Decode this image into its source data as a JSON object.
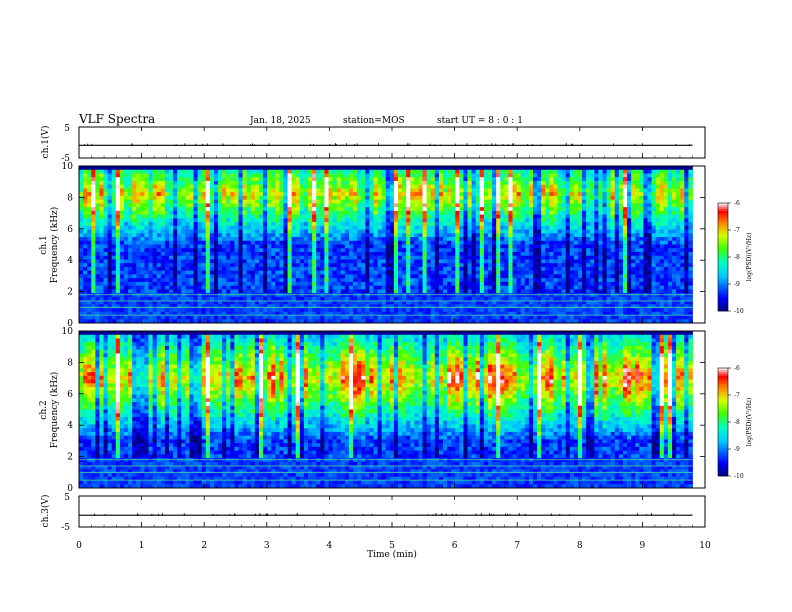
{
  "header": {
    "title": "VLF Spectra",
    "date": "Jan. 18, 2025",
    "station": "station=MOS",
    "start_ut": "start UT =  8 : 0 : 1"
  },
  "chart_data": [
    {
      "type": "line",
      "panel": "ch1-waveform",
      "ylabel": "ch.1(V)",
      "ylim": [
        -5,
        5
      ],
      "y_ticks": [
        "5",
        "-5"
      ],
      "x": [
        0,
        1,
        2,
        3,
        4,
        5,
        6,
        7,
        8,
        9,
        9.8
      ],
      "values": [
        -0.9,
        -0.9,
        -0.9,
        -0.9,
        -0.9,
        -0.9,
        -0.9,
        -0.9,
        -0.9,
        -0.9,
        -0.9
      ],
      "xlim": [
        0,
        10
      ]
    },
    {
      "type": "heatmap",
      "panel": "ch1-spectrogram",
      "ylabel": "ch.1 Frequency (kHz)",
      "ylim": [
        0,
        10
      ],
      "y_ticks": [
        "0",
        "2",
        "4",
        "6",
        "8",
        "10"
      ],
      "xlim": [
        0,
        10
      ],
      "data_end_min": 9.8,
      "colorbar": {
        "label": "log(PSD)(V²/Hz)",
        "range": [
          -10,
          -6
        ],
        "ticks": [
          "-6",
          "-7",
          "-8",
          "-9",
          "-10"
        ]
      }
    },
    {
      "type": "heatmap",
      "panel": "ch2-spectrogram",
      "ylabel": "ch.2 Frequency (kHz)",
      "ylim": [
        0,
        10
      ],
      "y_ticks": [
        "0",
        "2",
        "4",
        "6",
        "8",
        "10"
      ],
      "xlim": [
        0,
        10
      ],
      "data_end_min": 9.8,
      "colorbar": {
        "label": "log(PSD)(V²/Hz)",
        "range": [
          -10,
          -6
        ],
        "ticks": [
          "-6",
          "-7",
          "-8",
          "-9",
          "-10"
        ]
      }
    },
    {
      "type": "line",
      "panel": "ch3-waveform",
      "ylabel": "ch.3(V)",
      "ylim": [
        -5,
        5
      ],
      "y_ticks": [
        "5",
        "-5"
      ],
      "x": [
        0,
        1,
        2,
        3,
        4,
        5,
        6,
        7,
        8,
        9,
        9.8
      ],
      "values": [
        -1.2,
        -1.2,
        -1.2,
        -1.2,
        -1.2,
        -1.2,
        -1.2,
        -1.2,
        -1.2,
        -1.2,
        -1.2
      ],
      "xlim": [
        0,
        10
      ],
      "xlabel": "Time (min)",
      "x_ticks": [
        "0",
        "1",
        "2",
        "3",
        "4",
        "5",
        "6",
        "7",
        "8",
        "9",
        "10"
      ]
    }
  ]
}
